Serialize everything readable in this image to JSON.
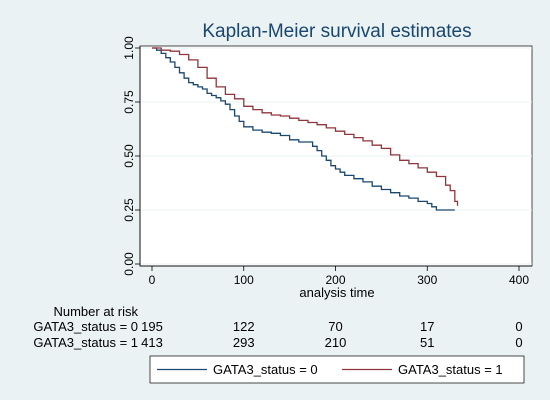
{
  "chart_data": {
    "type": "line",
    "title": "Kaplan-Meier survival estimates",
    "xlabel": "analysis time",
    "ylabel": "",
    "xlim": [
      0,
      400
    ],
    "ylim": [
      0,
      1
    ],
    "x_ticks": [
      "0",
      "100",
      "200",
      "300",
      "400"
    ],
    "y_ticks": [
      "0.00",
      "0.25",
      "0.50",
      "0.75",
      "1.00"
    ],
    "grid": "horizontal",
    "legend_position": "bottom",
    "series": [
      {
        "name": "GATA3_status = 0",
        "color": "#1a476f",
        "points": [
          [
            0,
            1.0
          ],
          [
            5,
            0.99
          ],
          [
            10,
            0.975
          ],
          [
            15,
            0.955
          ],
          [
            20,
            0.935
          ],
          [
            25,
            0.91
          ],
          [
            30,
            0.885
          ],
          [
            35,
            0.86
          ],
          [
            40,
            0.84
          ],
          [
            45,
            0.83
          ],
          [
            50,
            0.82
          ],
          [
            55,
            0.81
          ],
          [
            60,
            0.79
          ],
          [
            65,
            0.78
          ],
          [
            70,
            0.77
          ],
          [
            75,
            0.755
          ],
          [
            80,
            0.74
          ],
          [
            85,
            0.715
          ],
          [
            90,
            0.685
          ],
          [
            95,
            0.66
          ],
          [
            100,
            0.635
          ],
          [
            110,
            0.62
          ],
          [
            120,
            0.61
          ],
          [
            130,
            0.605
          ],
          [
            140,
            0.595
          ],
          [
            150,
            0.575
          ],
          [
            160,
            0.565
          ],
          [
            170,
            0.565
          ],
          [
            175,
            0.545
          ],
          [
            180,
            0.525
          ],
          [
            185,
            0.5
          ],
          [
            190,
            0.48
          ],
          [
            195,
            0.455
          ],
          [
            200,
            0.44
          ],
          [
            205,
            0.425
          ],
          [
            210,
            0.41
          ],
          [
            220,
            0.395
          ],
          [
            230,
            0.38
          ],
          [
            240,
            0.36
          ],
          [
            250,
            0.345
          ],
          [
            260,
            0.33
          ],
          [
            270,
            0.315
          ],
          [
            280,
            0.305
          ],
          [
            290,
            0.29
          ],
          [
            300,
            0.28
          ],
          [
            305,
            0.265
          ],
          [
            310,
            0.25
          ],
          [
            320,
            0.25
          ],
          [
            330,
            0.25
          ]
        ]
      },
      {
        "name": "GATA3_status = 1",
        "color": "#90353b",
        "points": [
          [
            0,
            1.0
          ],
          [
            10,
            0.99
          ],
          [
            20,
            0.985
          ],
          [
            30,
            0.97
          ],
          [
            40,
            0.945
          ],
          [
            50,
            0.91
          ],
          [
            60,
            0.86
          ],
          [
            70,
            0.82
          ],
          [
            80,
            0.785
          ],
          [
            90,
            0.765
          ],
          [
            100,
            0.73
          ],
          [
            110,
            0.715
          ],
          [
            120,
            0.7
          ],
          [
            130,
            0.69
          ],
          [
            140,
            0.685
          ],
          [
            150,
            0.675
          ],
          [
            160,
            0.665
          ],
          [
            170,
            0.655
          ],
          [
            180,
            0.645
          ],
          [
            190,
            0.63
          ],
          [
            200,
            0.615
          ],
          [
            210,
            0.6
          ],
          [
            220,
            0.585
          ],
          [
            230,
            0.57
          ],
          [
            240,
            0.55
          ],
          [
            250,
            0.535
          ],
          [
            260,
            0.505
          ],
          [
            270,
            0.48
          ],
          [
            280,
            0.465
          ],
          [
            290,
            0.445
          ],
          [
            300,
            0.425
          ],
          [
            310,
            0.405
          ],
          [
            320,
            0.365
          ],
          [
            325,
            0.34
          ],
          [
            330,
            0.29
          ],
          [
            333,
            0.27
          ]
        ]
      }
    ],
    "risk_table": {
      "header": "Number at risk",
      "times": [
        0,
        100,
        200,
        300,
        400
      ],
      "rows": [
        {
          "label": "GATA3_status = 0",
          "counts": [
            "195",
            "122",
            "70",
            "17",
            "0"
          ]
        },
        {
          "label": "GATA3_status = 1",
          "counts": [
            "413",
            "293",
            "210",
            "51",
            "0"
          ]
        }
      ]
    }
  }
}
